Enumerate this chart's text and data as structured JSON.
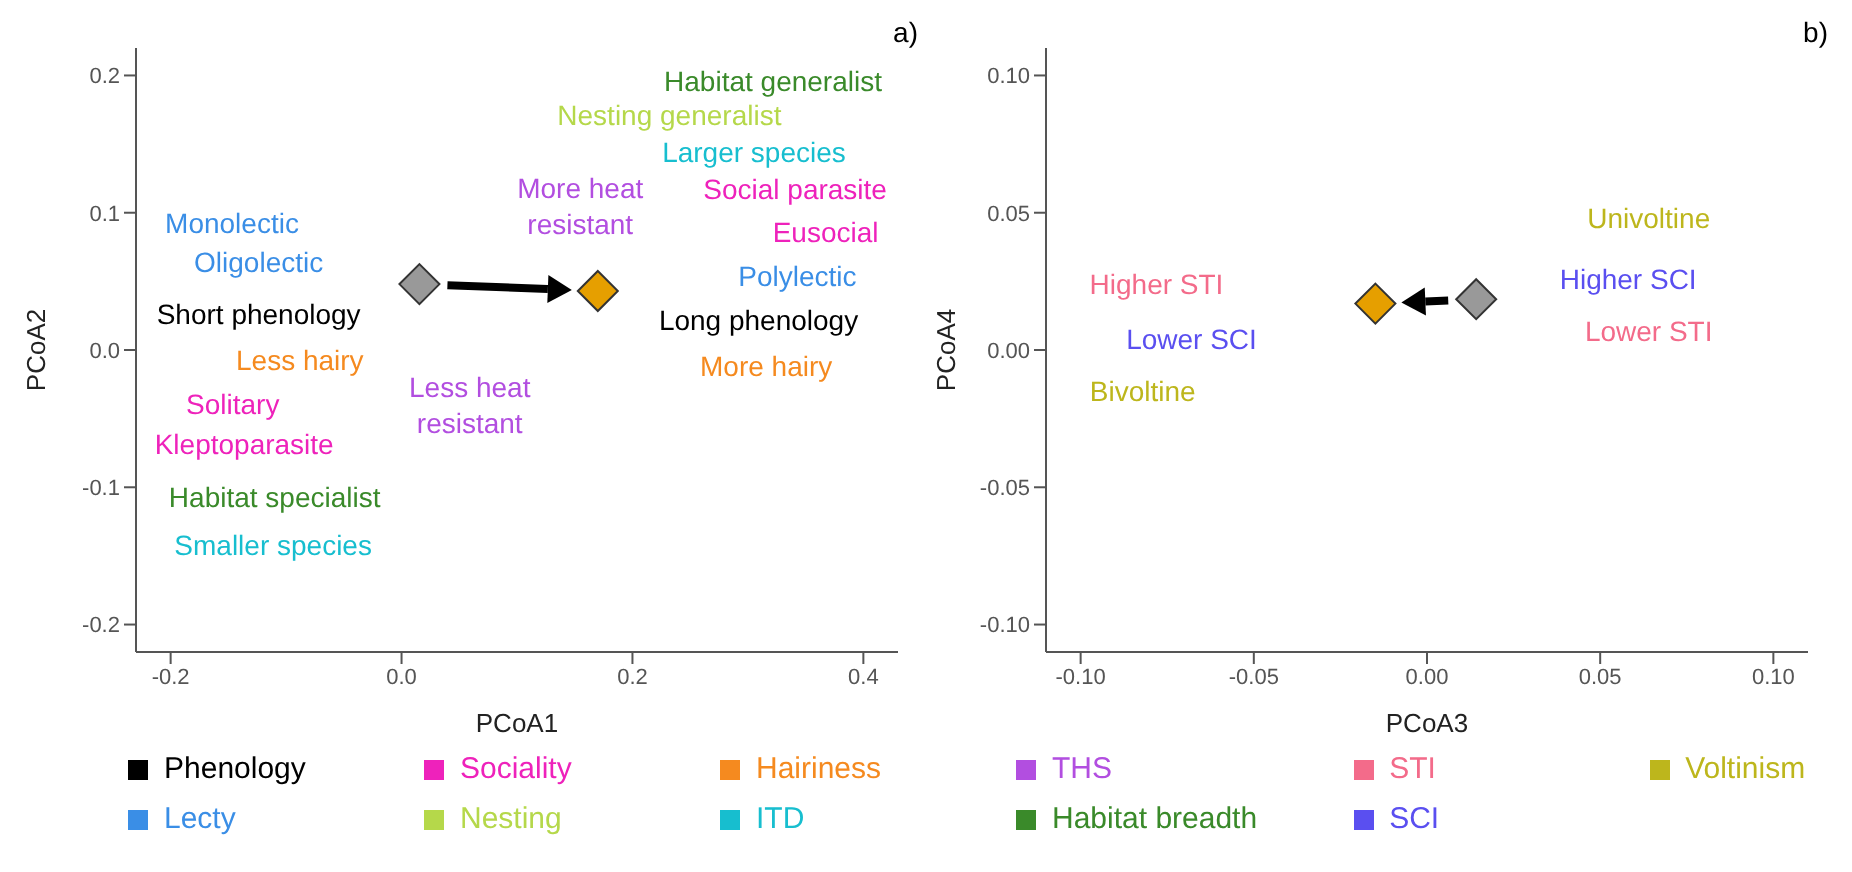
{
  "chart_data": [
    {
      "type": "scatter",
      "title": "a)",
      "xlabel": "PCoA1",
      "ylabel": "PCoA2",
      "xlim": [
        -0.23,
        0.43
      ],
      "ylim": [
        -0.22,
        0.22
      ],
      "xticks": [
        -0.2,
        {
          "value": 0,
          "label": "0.0"
        },
        0.2,
        0.4
      ],
      "yticks": [
        -0.2,
        -0.1,
        {
          "value": 0,
          "label": "0.0"
        },
        0.1,
        0.2
      ],
      "legend": "bottom",
      "marker": "diamond",
      "series": [
        {
          "x": [
            0.0155,
            0.17
          ],
          "values": [
            0.048,
            0.043
          ],
          "colors": [
            "#999999",
            "#e69f00"
          ]
        },
        {
          "name": "Phenology",
          "color": "#000000",
          "values": [
            null,
            null
          ]
        },
        {
          "name": "Lecty",
          "color": "#3a8ee6",
          "values": [
            null,
            null,
            null
          ]
        },
        {
          "name": "Sociality",
          "color": "#ee22bb",
          "values": [
            null,
            null,
            null,
            null
          ]
        },
        {
          "name": "Nesting",
          "color": "#b5d84a",
          "values": [
            null
          ]
        },
        {
          "name": "Hairiness",
          "color": "#f58a1f",
          "values": [
            null,
            null
          ]
        },
        {
          "name": "ITD",
          "color": "#17becf",
          "values": [
            null,
            null
          ]
        },
        {
          "name": "THS",
          "color": "#b24ee0",
          "values": [
            null,
            null
          ]
        },
        {
          "name": "Habitat breadth",
          "color": "#3a8a2a",
          "values": [
            null,
            null
          ]
        }
      ],
      "annotations": [
        "Short phenology",
        "Long phenology",
        "Monolectic",
        "Oligolectic",
        "Polylectic",
        "Solitary",
        "Kleptoparasite",
        "Social parasite",
        "Eusocial",
        "Nesting generalist",
        "Less hairy",
        "More hairy",
        "Smaller species",
        "Larger species",
        "Less heat\nresistant",
        "More heat\nresistant",
        "Habitat specialist",
        "Habitat generalist"
      ]
    },
    {
      "type": "scatter",
      "title": "b)",
      "xlabel": "PCoA3",
      "ylabel": "PCoA4",
      "xlim": [
        -0.11,
        0.11
      ],
      "ylim": [
        -0.11,
        0.11
      ],
      "xticks": [
        {
          "value": -0.1,
          "label": "-0.10"
        },
        {
          "value": -0.05,
          "label": "-0.05"
        },
        {
          "value": 0,
          "label": "0.00"
        },
        {
          "value": 0.05,
          "label": "0.05"
        },
        {
          "value": 0.1,
          "label": "0.10"
        }
      ],
      "yticks": [
        {
          "value": -0.1,
          "label": "-0.10"
        },
        {
          "value": -0.05,
          "label": "-0.05"
        },
        {
          "value": 0,
          "label": "0.00"
        },
        {
          "value": 0.05,
          "label": "0.05"
        },
        {
          "value": 0.1,
          "label": "0.10"
        }
      ],
      "legend": "bottom",
      "marker": "diamond",
      "series": [
        {
          "x": [
            0.0142,
            -0.0149
          ],
          "values": [
            0.0185,
            0.0169
          ],
          "colors": [
            "#999999",
            "#e69f00"
          ]
        },
        {
          "name": "STI",
          "color": "#f36b8a",
          "values": [
            null,
            null
          ]
        },
        {
          "name": "SCI",
          "color": "#5a4ff0",
          "values": [
            null,
            null
          ]
        },
        {
          "name": "Voltinism",
          "color": "#bdb61c",
          "values": [
            null,
            null
          ]
        }
      ],
      "annotations": [
        "Higher STI",
        "Lower STI",
        "Lower SCI",
        "Higher SCI",
        "Bivoltine",
        "Univoltine"
      ]
    }
  ]
}
